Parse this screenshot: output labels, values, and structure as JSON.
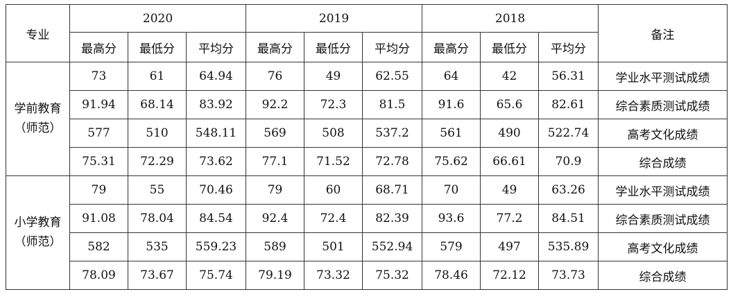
{
  "header": {
    "major": "专业",
    "note": "备注",
    "years": [
      "2020",
      "2019",
      "2018"
    ],
    "subcols": [
      "最高分",
      "最低分",
      "平均分"
    ]
  },
  "groups": [
    {
      "major_line1": "学前教育",
      "major_line2": "（师范）",
      "rows": [
        {
          "values": [
            "73",
            "61",
            "64.94",
            "76",
            "49",
            "62.55",
            "64",
            "42",
            "56.31"
          ],
          "note": "学业水平测试成绩"
        },
        {
          "values": [
            "91.94",
            "68.14",
            "83.92",
            "92.2",
            "72.3",
            "81.5",
            "91.6",
            "65.6",
            "82.61"
          ],
          "note": "综合素质测试成绩"
        },
        {
          "values": [
            "577",
            "510",
            "548.11",
            "569",
            "508",
            "537.2",
            "561",
            "490",
            "522.74"
          ],
          "note": "高考文化成绩"
        },
        {
          "values": [
            "75.31",
            "72.29",
            "73.62",
            "77.1",
            "71.52",
            "72.78",
            "75.62",
            "66.61",
            "70.9"
          ],
          "note": "综合成绩"
        }
      ]
    },
    {
      "major_line1": "小学教育",
      "major_line2": "（师范）",
      "rows": [
        {
          "values": [
            "79",
            "55",
            "70.46",
            "79",
            "60",
            "68.71",
            "70",
            "49",
            "63.26"
          ],
          "note": "学业水平测试成绩"
        },
        {
          "values": [
            "91.08",
            "78.04",
            "84.54",
            "92.4",
            "72.4",
            "82.39",
            "93.6",
            "77.2",
            "84.51"
          ],
          "note": "综合素质测试成绩"
        },
        {
          "values": [
            "582",
            "535",
            "559.23",
            "589",
            "501",
            "552.94",
            "579",
            "497",
            "535.89"
          ],
          "note": "高考文化成绩"
        },
        {
          "values": [
            "78.09",
            "73.67",
            "75.74",
            "79.19",
            "73.32",
            "75.32",
            "78.46",
            "72.12",
            "73.73"
          ],
          "note": "综合成绩"
        }
      ]
    }
  ]
}
